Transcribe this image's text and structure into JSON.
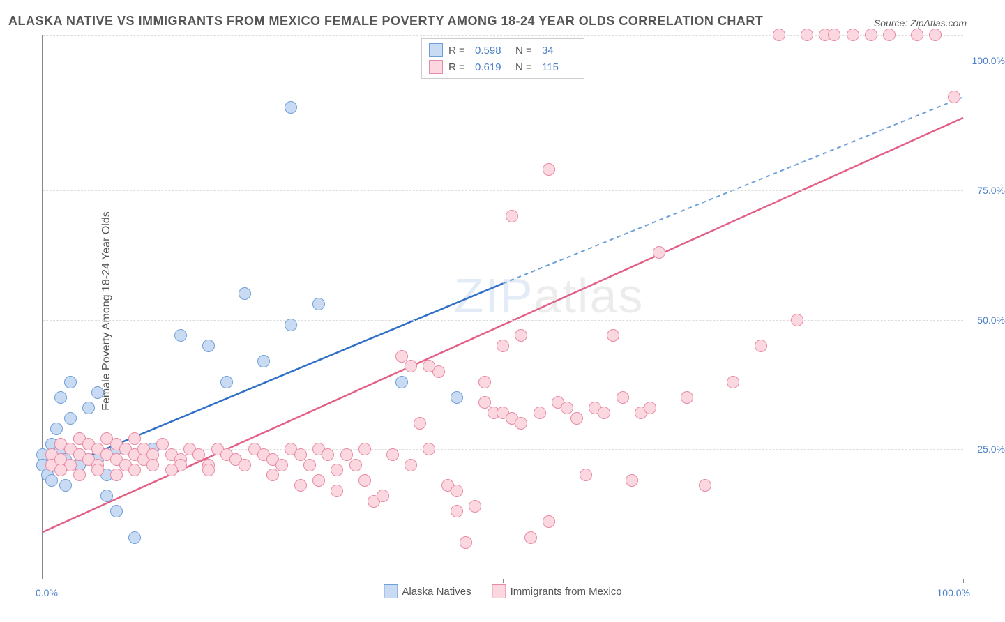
{
  "title": "ALASKA NATIVE VS IMMIGRANTS FROM MEXICO FEMALE POVERTY AMONG 18-24 YEAR OLDS CORRELATION CHART",
  "source": "Source: ZipAtlas.com",
  "ylabel": "Female Poverty Among 18-24 Year Olds",
  "watermark_a": "ZIP",
  "watermark_b": "atlas",
  "chart": {
    "type": "scatter",
    "xlim": [
      0,
      100
    ],
    "ylim": [
      0,
      105
    ],
    "xtick_left": "0.0%",
    "xtick_right": "100.0%",
    "yticks": [
      {
        "v": 25,
        "label": "25.0%"
      },
      {
        "v": 50,
        "label": "50.0%"
      },
      {
        "v": 75,
        "label": "75.0%"
      },
      {
        "v": 100,
        "label": "100.0%"
      }
    ],
    "xticks_minor": [
      0,
      50,
      100
    ],
    "grid_color": "#dddddd",
    "background": "#ffffff",
    "marker_radius": 8,
    "marker_border_width": 1.5,
    "series": [
      {
        "id": "blue",
        "name": "Alaska Natives",
        "fill": "#c9dbf2",
        "stroke": "#6f9fd8",
        "R": "0.598",
        "N": "34",
        "trend": {
          "x1": 0,
          "y1": 20,
          "x2": 50,
          "y2": 57,
          "x2dash": 100,
          "y2dash": 93,
          "width": 2.5,
          "color": "#2e6fc7",
          "dash_color": "#6f9fd8"
        },
        "points": [
          [
            0,
            24
          ],
          [
            0,
            22
          ],
          [
            0.5,
            20
          ],
          [
            1,
            19
          ],
          [
            1,
            26
          ],
          [
            1.5,
            29
          ],
          [
            2,
            35
          ],
          [
            2,
            25
          ],
          [
            2.5,
            23
          ],
          [
            2.5,
            18
          ],
          [
            3,
            31
          ],
          [
            3,
            38
          ],
          [
            4,
            27
          ],
          [
            4,
            22
          ],
          [
            5,
            33
          ],
          [
            6,
            36
          ],
          [
            6,
            23
          ],
          [
            7,
            20
          ],
          [
            8,
            25
          ],
          [
            8,
            13
          ],
          [
            10,
            8
          ],
          [
            12,
            25
          ],
          [
            15,
            47
          ],
          [
            18,
            45
          ],
          [
            20,
            38
          ],
          [
            22,
            55
          ],
          [
            24,
            42
          ],
          [
            27,
            49
          ],
          [
            27,
            91
          ],
          [
            30,
            53
          ],
          [
            39,
            38
          ],
          [
            45,
            35
          ],
          [
            7,
            16
          ],
          [
            4,
            24
          ]
        ]
      },
      {
        "id": "pink",
        "name": "Immigrants from Mexico",
        "fill": "#fbd7e0",
        "stroke": "#e88aa5",
        "R": "0.619",
        "N": "115",
        "trend": {
          "x1": 0,
          "y1": 9,
          "x2": 100,
          "y2": 89,
          "width": 2.5,
          "color": "#e45f85"
        },
        "points": [
          [
            1,
            24
          ],
          [
            1,
            22
          ],
          [
            2,
            23
          ],
          [
            2,
            26
          ],
          [
            3,
            25
          ],
          [
            3,
            22
          ],
          [
            4,
            27
          ],
          [
            4,
            24
          ],
          [
            5,
            23
          ],
          [
            5,
            26
          ],
          [
            6,
            25
          ],
          [
            6,
            22
          ],
          [
            7,
            24
          ],
          [
            7,
            27
          ],
          [
            8,
            23
          ],
          [
            8,
            26
          ],
          [
            9,
            25
          ],
          [
            9,
            22
          ],
          [
            10,
            24
          ],
          [
            10,
            27
          ],
          [
            11,
            23
          ],
          [
            11,
            25
          ],
          [
            12,
            24
          ],
          [
            12,
            22
          ],
          [
            13,
            26
          ],
          [
            14,
            24
          ],
          [
            15,
            23
          ],
          [
            15,
            22
          ],
          [
            16,
            25
          ],
          [
            17,
            24
          ],
          [
            18,
            22
          ],
          [
            19,
            25
          ],
          [
            20,
            24
          ],
          [
            21,
            23
          ],
          [
            22,
            22
          ],
          [
            23,
            25
          ],
          [
            24,
            24
          ],
          [
            25,
            23
          ],
          [
            26,
            22
          ],
          [
            27,
            25
          ],
          [
            28,
            24
          ],
          [
            29,
            22
          ],
          [
            30,
            25
          ],
          [
            31,
            24
          ],
          [
            32,
            21
          ],
          [
            33,
            24
          ],
          [
            34,
            22
          ],
          [
            35,
            25
          ],
          [
            36,
            15
          ],
          [
            37,
            16
          ],
          [
            38,
            24
          ],
          [
            39,
            43
          ],
          [
            40,
            22
          ],
          [
            40,
            41
          ],
          [
            41,
            30
          ],
          [
            42,
            25
          ],
          [
            43,
            40
          ],
          [
            44,
            18
          ],
          [
            45,
            17
          ],
          [
            45,
            13
          ],
          [
            46,
            7
          ],
          [
            47,
            14
          ],
          [
            48,
            34
          ],
          [
            48,
            38
          ],
          [
            49,
            32
          ],
          [
            50,
            32
          ],
          [
            50,
            45
          ],
          [
            51,
            31
          ],
          [
            51,
            70
          ],
          [
            52,
            30
          ],
          [
            52,
            47
          ],
          [
            53,
            8
          ],
          [
            54,
            32
          ],
          [
            55,
            11
          ],
          [
            55,
            79
          ],
          [
            56,
            34
          ],
          [
            57,
            33
          ],
          [
            58,
            31
          ],
          [
            59,
            20
          ],
          [
            60,
            33
          ],
          [
            61,
            32
          ],
          [
            62,
            47
          ],
          [
            63,
            35
          ],
          [
            64,
            19
          ],
          [
            65,
            32
          ],
          [
            66,
            33
          ],
          [
            67,
            63
          ],
          [
            70,
            35
          ],
          [
            72,
            18
          ],
          [
            75,
            38
          ],
          [
            78,
            45
          ],
          [
            80,
            105
          ],
          [
            82,
            50
          ],
          [
            83,
            105
          ],
          [
            85,
            105
          ],
          [
            86,
            105
          ],
          [
            88,
            105
          ],
          [
            90,
            105
          ],
          [
            92,
            105
          ],
          [
            95,
            105
          ],
          [
            97,
            105
          ],
          [
            99,
            93
          ],
          [
            2,
            21
          ],
          [
            4,
            20
          ],
          [
            6,
            21
          ],
          [
            8,
            20
          ],
          [
            10,
            21
          ],
          [
            14,
            21
          ],
          [
            18,
            21
          ],
          [
            25,
            20
          ],
          [
            30,
            19
          ],
          [
            35,
            19
          ],
          [
            28,
            18
          ],
          [
            32,
            17
          ],
          [
            42,
            41
          ]
        ]
      }
    ]
  }
}
